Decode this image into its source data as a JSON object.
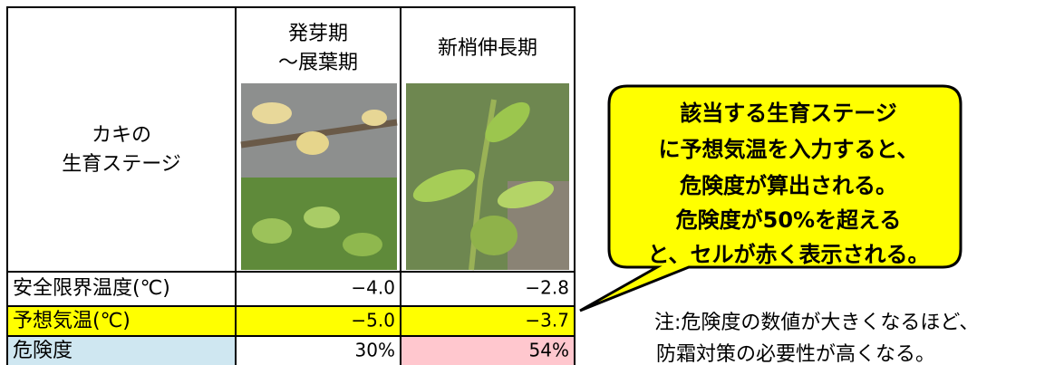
{
  "table": {
    "stage_label": [
      "カキの",
      "生育ステージ"
    ],
    "columns": [
      [
        "発芽期",
        "～展葉期"
      ],
      [
        "新梢伸長期"
      ]
    ],
    "rows": [
      [
        "安全限界温度(℃)",
        "−4.0",
        "−2.8"
      ],
      [
        "予想気温(℃)",
        "−5.0",
        "−3.7"
      ],
      [
        "危険度",
        "30%",
        "54%"
      ]
    ]
  },
  "callout": [
    "該当する生育ステージ",
    "に予想気温を入力すると、",
    "危険度が算出される。",
    "危険度が50%を超える",
    "と、セルが赤く表示される。"
  ],
  "note": [
    "注:危険度の数値が大きくなるほど、",
    "防霜対策の必要性が高くなる。"
  ]
}
